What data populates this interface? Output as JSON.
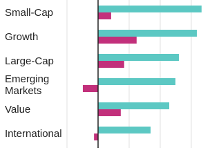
{
  "chart_data": {
    "type": "bar",
    "orientation": "horizontal",
    "categories": [
      "Small-Cap",
      "Growth",
      "Large-Cap",
      "Emerging Markets",
      "Value",
      "International"
    ],
    "series": [
      {
        "color": "#5cc8c3",
        "values": [
          33.3,
          31.8,
          26,
          24.9,
          22.9,
          16.9
        ]
      },
      {
        "color": "#c2307b",
        "values": [
          4.2,
          12.4,
          8.4,
          -4.9,
          7.3,
          -1.3
        ]
      }
    ],
    "xlim": [
      -30,
      38
    ],
    "xticks": [
      -10,
      10,
      20,
      30
    ],
    "grid": true
  }
}
